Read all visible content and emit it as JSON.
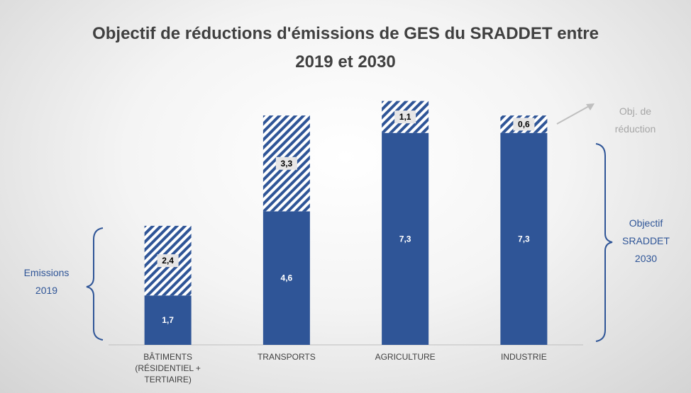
{
  "chart_data": {
    "type": "stacked_bar",
    "title": "Objectif de réductions d'émissions de GES du SRADDET entre 2019 et 2030",
    "categories": [
      "BÂTIMENTS (RÉSIDENTIEL + TERTIAIRE)",
      "TRANSPORTS",
      "AGRICULTURE",
      "INDUSTRIE"
    ],
    "series": [
      {
        "color": "#2f5597",
        "values": [
          1.7,
          4.6,
          7.3,
          7.3
        ],
        "value_labels": [
          "1,7",
          "4,6",
          "7,3",
          "7,3"
        ]
      },
      {
        "color": "#2f5597",
        "hatched": true,
        "values": [
          2.4,
          3.3,
          1.1,
          0.6
        ],
        "value_labels": [
          "2,4",
          "3,3",
          "1,1",
          "0,6"
        ]
      }
    ],
    "ylim": [
      0,
      8.5
    ],
    "annotations": [
      "Emissions 2019",
      "Objectif SRADDET 2030",
      "Obj. de réduction"
    ]
  }
}
